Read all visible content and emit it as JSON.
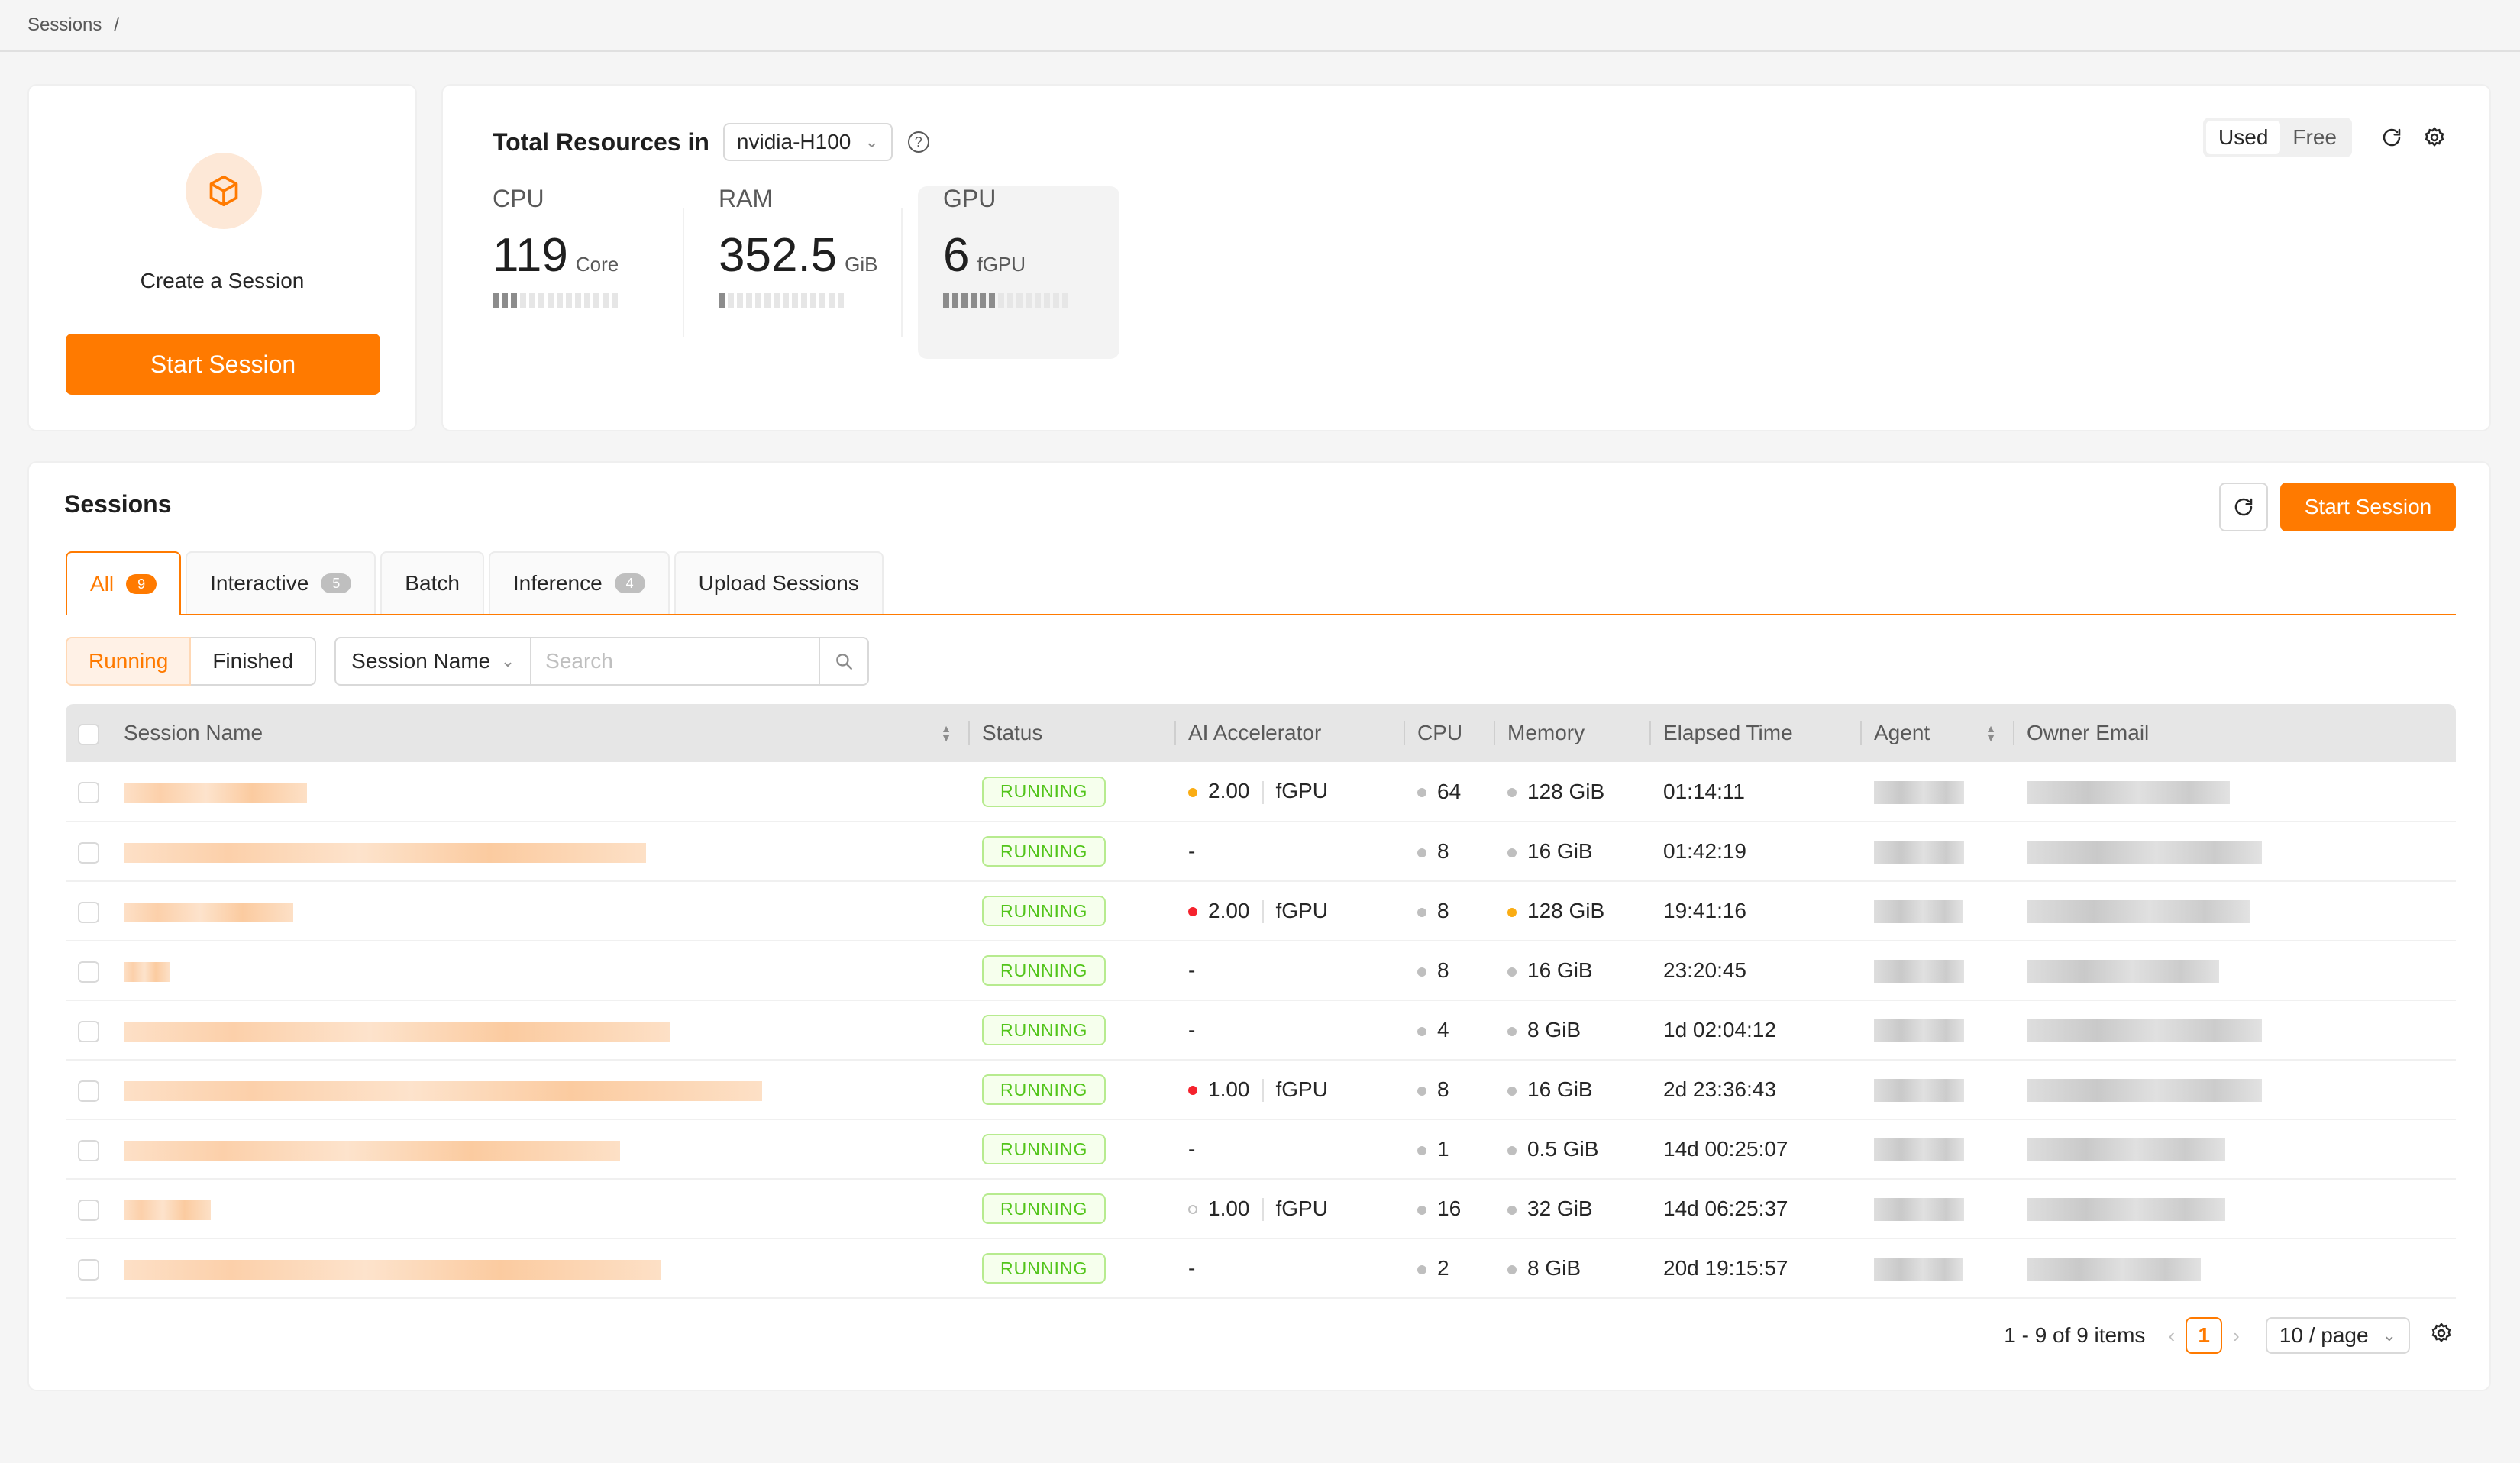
{
  "breadcrumb": {
    "label": "Sessions",
    "sep": "/"
  },
  "create_card": {
    "label": "Create a Session",
    "button": "Start Session"
  },
  "resources": {
    "title": "Total Resources in",
    "resource_group": "nvidia-H100",
    "toggle": {
      "used": "Used",
      "free": "Free"
    },
    "metrics": [
      {
        "label": "CPU",
        "value": "119",
        "unit": "Core",
        "filled_segments": 3,
        "total_segments": 14
      },
      {
        "label": "RAM",
        "value": "352.5",
        "unit": "GiB",
        "filled_segments": 1,
        "total_segments": 14
      },
      {
        "label": "GPU",
        "value": "6",
        "unit": "fGPU",
        "filled_segments": 6,
        "total_segments": 14
      }
    ]
  },
  "sessions": {
    "title": "Sessions",
    "start_button": "Start Session",
    "tabs": [
      {
        "label": "All",
        "badge": "9"
      },
      {
        "label": "Interactive",
        "badge": "5"
      },
      {
        "label": "Batch",
        "badge": ""
      },
      {
        "label": "Inference",
        "badge": "4"
      },
      {
        "label": "Upload Sessions",
        "badge": ""
      }
    ],
    "status_filter": {
      "running": "Running",
      "finished": "Finished"
    },
    "search": {
      "field": "Session Name",
      "placeholder": "Search"
    },
    "columns": [
      "Session Name",
      "Status",
      "AI Accelerator",
      "CPU",
      "Memory",
      "Elapsed Time",
      "Agent",
      "Owner Email"
    ],
    "rows": [
      {
        "status": "RUNNING",
        "acc_dot": "orange",
        "acc_value": "2.00",
        "acc_unit": "fGPU",
        "cpu_dot": "gray",
        "cpu": "64",
        "mem_dot": "gray",
        "mem": "128 GiB",
        "elapsed": "01:14:11"
      },
      {
        "status": "RUNNING",
        "acc_dot": "",
        "acc_value": "-",
        "acc_unit": "",
        "cpu_dot": "gray",
        "cpu": "8",
        "mem_dot": "gray",
        "mem": "16 GiB",
        "elapsed": "01:42:19"
      },
      {
        "status": "RUNNING",
        "acc_dot": "red",
        "acc_value": "2.00",
        "acc_unit": "fGPU",
        "cpu_dot": "gray",
        "cpu": "8",
        "mem_dot": "orange",
        "mem": "128 GiB",
        "elapsed": "19:41:16"
      },
      {
        "status": "RUNNING",
        "acc_dot": "",
        "acc_value": "-",
        "acc_unit": "",
        "cpu_dot": "gray",
        "cpu": "8",
        "mem_dot": "gray",
        "mem": "16 GiB",
        "elapsed": "23:20:45"
      },
      {
        "status": "RUNNING",
        "acc_dot": "",
        "acc_value": "-",
        "acc_unit": "",
        "cpu_dot": "gray",
        "cpu": "4",
        "mem_dot": "gray",
        "mem": "8 GiB",
        "elapsed": "1d 02:04:12"
      },
      {
        "status": "RUNNING",
        "acc_dot": "red",
        "acc_value": "1.00",
        "acc_unit": "fGPU",
        "cpu_dot": "gray",
        "cpu": "8",
        "mem_dot": "gray",
        "mem": "16 GiB",
        "elapsed": "2d 23:36:43"
      },
      {
        "status": "RUNNING",
        "acc_dot": "",
        "acc_value": "-",
        "acc_unit": "",
        "cpu_dot": "gray",
        "cpu": "1",
        "mem_dot": "gray",
        "mem": "0.5 GiB",
        "elapsed": "14d 00:25:07"
      },
      {
        "status": "RUNNING",
        "acc_dot": "hollow",
        "acc_value": "1.00",
        "acc_unit": "fGPU",
        "cpu_dot": "gray",
        "cpu": "16",
        "mem_dot": "gray",
        "mem": "32 GiB",
        "elapsed": "14d 06:25:37"
      },
      {
        "status": "RUNNING",
        "acc_dot": "",
        "acc_value": "-",
        "acc_unit": "",
        "cpu_dot": "gray",
        "cpu": "2",
        "mem_dot": "gray",
        "mem": "8 GiB",
        "elapsed": "20d 19:15:57"
      }
    ],
    "pagination": {
      "summary": "1 - 9 of 9 items",
      "current_page": "1",
      "page_size": "10 / page"
    }
  },
  "colors": {
    "accent": "#ff7a00",
    "running_green": "#52c41a",
    "warning": "#faad14",
    "danger": "#f5222d"
  }
}
